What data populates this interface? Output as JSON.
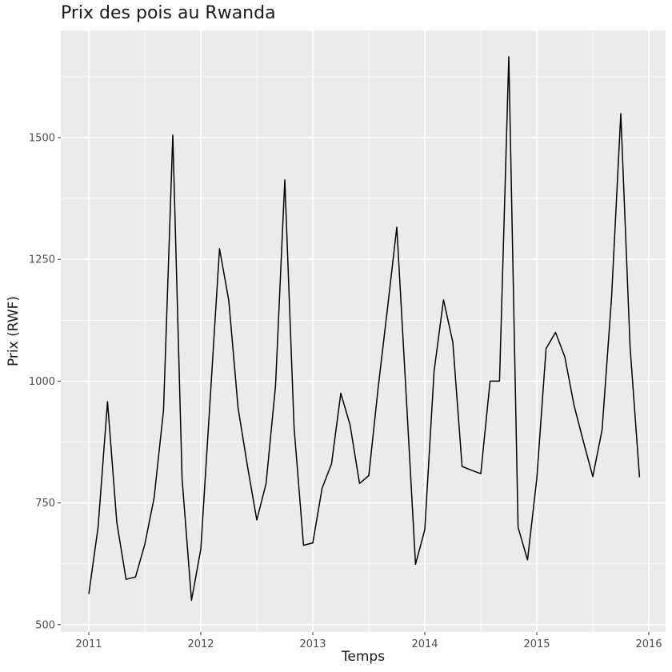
{
  "chart_data": {
    "type": "line",
    "title": "Prix des pois au Rwanda",
    "xlabel": "Temps",
    "ylabel": "Prix (RWF)",
    "xlim": [
      2010.75,
      2016.15
    ],
    "ylim": [
      485,
      1720
    ],
    "x_ticks": [
      2011,
      2012,
      2013,
      2014,
      2015,
      2016
    ],
    "x_tick_labels": [
      "2011",
      "2012",
      "2013",
      "2014",
      "2015",
      "2016"
    ],
    "y_ticks": [
      500,
      750,
      1000,
      1250,
      1500
    ],
    "y_tick_labels": [
      "500",
      "750",
      "1000",
      "1250",
      "1500"
    ],
    "grid": true,
    "background": "#ebebeb",
    "grid_color": "#ffffff",
    "line_color": "#000000",
    "series": [
      {
        "x": [
          2011.0,
          2011.083,
          2011.167,
          2011.25,
          2011.333,
          2011.417,
          2011.5,
          2011.583,
          2011.667,
          2011.75,
          2011.833,
          2011.917,
          2012.0,
          2012.083,
          2012.167,
          2012.25,
          2012.333,
          2012.417,
          2012.5,
          2012.583,
          2012.667,
          2012.75,
          2012.833,
          2012.917,
          2013.0,
          2013.083,
          2013.167,
          2013.25,
          2013.333,
          2013.417,
          2013.5,
          2013.583,
          2013.667,
          2013.75,
          2013.833,
          2013.917,
          2014.0,
          2014.083,
          2014.167,
          2014.25,
          2014.333,
          2014.417,
          2014.5,
          2014.583,
          2014.667,
          2014.75,
          2014.833,
          2014.917,
          2015.0,
          2015.083,
          2015.167,
          2015.25,
          2015.333,
          2015.417,
          2015.5,
          2015.583,
          2015.667,
          2015.75,
          2015.833,
          2015.917
        ],
        "values": [
          563,
          700,
          958,
          710,
          593,
          598,
          665,
          760,
          940,
          1505,
          800,
          550,
          655,
          960,
          1272,
          1165,
          945,
          825,
          715,
          790,
          990,
          1413,
          905,
          663,
          668,
          780,
          830,
          975,
          910,
          790,
          806,
          985,
          1150,
          1316,
          975,
          624,
          695,
          1020,
          1167,
          1080,
          825,
          817,
          810,
          1000,
          1000,
          1666,
          700,
          633,
          800,
          1067,
          1100,
          1050,
          950,
          875,
          804,
          900,
          1170,
          1549,
          1070,
          803
        ]
      }
    ]
  }
}
